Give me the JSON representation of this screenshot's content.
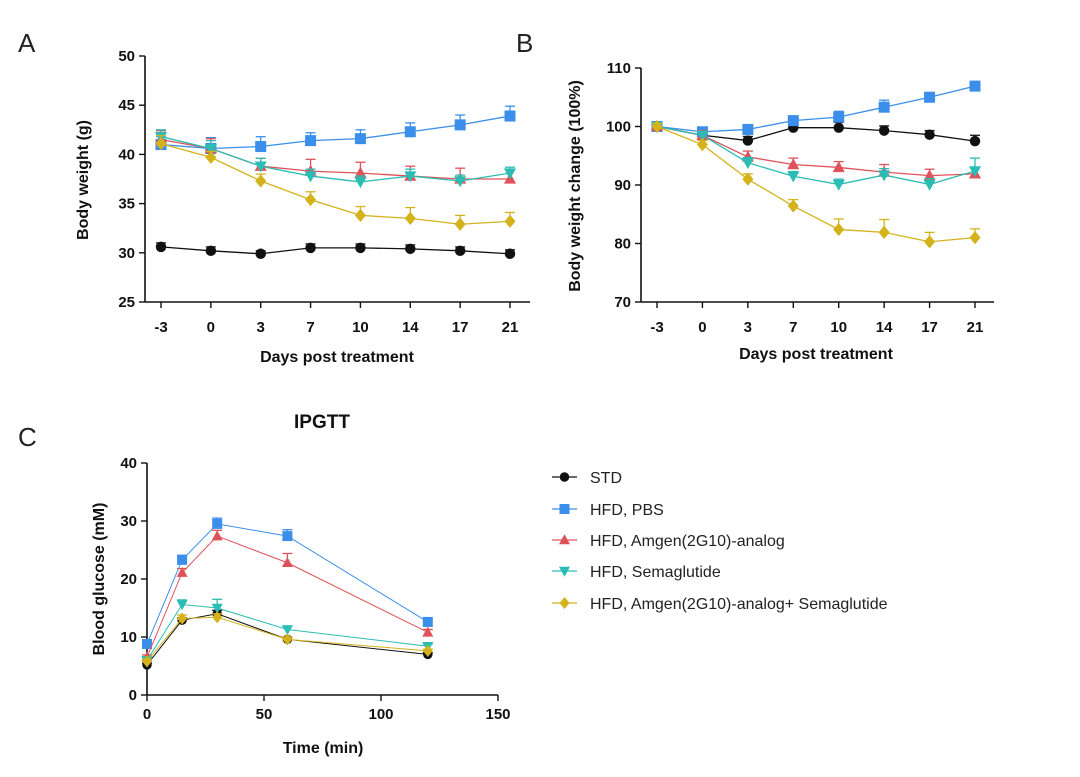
{
  "series_styles": [
    {
      "name": "STD",
      "color": "#111111",
      "marker": "circle"
    },
    {
      "name": "HFD, PBS",
      "color": "#3b8eea",
      "marker": "square"
    },
    {
      "name": "HFD, Amgen(2G10)-analog",
      "color": "#e0525a",
      "marker": "triangle-up"
    },
    {
      "name": "HFD, Semaglutide",
      "color": "#2bbdb3",
      "marker": "triangle-down"
    },
    {
      "name": "HFD, Amgen(2G10)-analog+ Semaglutide",
      "color": "#d4b21c",
      "marker": "diamond"
    }
  ],
  "chart_data": [
    {
      "id": "A",
      "panel_label": "A",
      "type": "line",
      "title": "",
      "xlabel": "Days post treatment",
      "ylabel": "Body weight (g)",
      "categories": [
        "-3",
        "0",
        "3",
        "7",
        "10",
        "14",
        "17",
        "21"
      ],
      "ylim": [
        25,
        50
      ],
      "yticks": [
        25,
        30,
        35,
        40,
        45,
        50
      ],
      "grid": false,
      "series": [
        {
          "name": "STD",
          "values": [
            30.6,
            30.2,
            29.9,
            30.5,
            30.5,
            30.4,
            30.2,
            29.9
          ],
          "err": [
            0.4,
            0.4,
            0.3,
            0.4,
            0.4,
            0.4,
            0.4,
            0.4
          ]
        },
        {
          "name": "HFD, PBS",
          "values": [
            41.0,
            40.6,
            40.8,
            41.4,
            41.6,
            42.3,
            43.0,
            43.9
          ],
          "err": [
            0.8,
            1.1,
            1.0,
            0.8,
            0.9,
            0.9,
            1.0,
            1.0
          ]
        },
        {
          "name": "HFD, Amgen(2G10)-analog",
          "values": [
            41.5,
            40.6,
            38.8,
            38.3,
            38.1,
            37.8,
            37.5,
            37.5
          ],
          "err": [
            0.9,
            1.0,
            0.8,
            1.2,
            1.1,
            1.0,
            1.1,
            0.9
          ]
        },
        {
          "name": "HFD, Semaglutide",
          "values": [
            41.8,
            40.6,
            38.8,
            37.8,
            37.2,
            37.8,
            37.3,
            38.1
          ],
          "err": [
            0.7,
            0.8,
            0.8,
            0.7,
            0.6,
            0.7,
            0.6,
            0.6
          ]
        },
        {
          "name": "HFD, Amgen(2G10)-analog+ Semaglutide",
          "values": [
            41.1,
            39.7,
            37.3,
            35.4,
            33.8,
            33.5,
            32.9,
            33.2
          ],
          "err": [
            0.8,
            0.6,
            0.7,
            0.8,
            0.9,
            1.1,
            0.9,
            0.9
          ]
        }
      ]
    },
    {
      "id": "B",
      "panel_label": "B",
      "type": "line",
      "title": "",
      "xlabel": "Days post treatment",
      "ylabel": "Body weight change (100%)",
      "categories": [
        "-3",
        "0",
        "3",
        "7",
        "10",
        "14",
        "17",
        "21"
      ],
      "ylim": [
        70,
        110
      ],
      "yticks": [
        70,
        80,
        90,
        100,
        110
      ],
      "grid": false,
      "series": [
        {
          "name": "STD",
          "values": [
            100.0,
            98.5,
            97.6,
            99.8,
            99.8,
            99.3,
            98.6,
            97.5
          ],
          "err": [
            0.6,
            0.8,
            0.7,
            1.0,
            0.9,
            0.8,
            0.7,
            1.0
          ]
        },
        {
          "name": "HFD, PBS",
          "values": [
            100.0,
            99.1,
            99.5,
            101.0,
            101.6,
            103.3,
            105.0,
            106.9
          ],
          "err": [
            0.5,
            0.6,
            0.6,
            0.8,
            1.0,
            1.2,
            0.8,
            0.8
          ]
        },
        {
          "name": "HFD, Amgen(2G10)-analog",
          "values": [
            100.0,
            98.5,
            94.8,
            93.5,
            93.0,
            92.2,
            91.6,
            91.9
          ],
          "err": [
            0.5,
            0.8,
            1.0,
            1.1,
            1.0,
            1.3,
            1.1,
            1.0
          ]
        },
        {
          "name": "HFD, Semaglutide",
          "values": [
            100.0,
            98.5,
            93.8,
            91.5,
            90.1,
            91.7,
            90.1,
            92.4
          ],
          "err": [
            0.5,
            0.7,
            0.9,
            0.8,
            0.9,
            1.1,
            1.0,
            2.2
          ]
        },
        {
          "name": "HFD, Amgen(2G10)-analog+ Semaglutide",
          "values": [
            100.0,
            96.9,
            91.0,
            86.4,
            82.4,
            81.9,
            80.3,
            81.0
          ],
          "err": [
            0.5,
            0.7,
            0.9,
            1.1,
            1.8,
            2.2,
            1.6,
            1.5
          ]
        }
      ]
    },
    {
      "id": "C",
      "panel_label": "C",
      "type": "line",
      "title": "IPGTT",
      "xlabel": "Time (min)",
      "ylabel": "Blood glucose (mM)",
      "x": [
        0,
        15,
        30,
        60,
        120
      ],
      "xlim": [
        0,
        150
      ],
      "xticks": [
        0,
        50,
        100,
        150
      ],
      "ylim": [
        0,
        40
      ],
      "yticks": [
        0,
        10,
        20,
        30,
        40
      ],
      "grid": false,
      "legend": "right",
      "series": [
        {
          "name": "STD",
          "values": [
            5.2,
            12.9,
            14.0,
            9.6,
            7.0
          ],
          "err": [
            0.3,
            0.4,
            0.6,
            0.4,
            0.3
          ]
        },
        {
          "name": "HFD, PBS",
          "values": [
            8.8,
            23.3,
            29.5,
            27.4,
            12.6
          ],
          "err": [
            0.4,
            0.8,
            1.0,
            1.1,
            0.5
          ]
        },
        {
          "name": "HFD, Amgen(2G10)-analog",
          "values": [
            6.5,
            21.1,
            27.4,
            22.8,
            10.8
          ],
          "err": [
            0.4,
            0.7,
            1.0,
            1.6,
            0.5
          ]
        },
        {
          "name": "HFD, Semaglutide",
          "values": [
            6.0,
            15.6,
            15.0,
            11.3,
            8.4
          ],
          "err": [
            0.4,
            0.8,
            1.5,
            0.6,
            0.4
          ]
        },
        {
          "name": "HFD, Amgen(2G10)-analog+ Semaglutide",
          "values": [
            5.8,
            13.2,
            13.4,
            9.6,
            7.6
          ],
          "err": [
            0.3,
            0.6,
            0.6,
            0.4,
            0.3
          ]
        }
      ]
    }
  ]
}
